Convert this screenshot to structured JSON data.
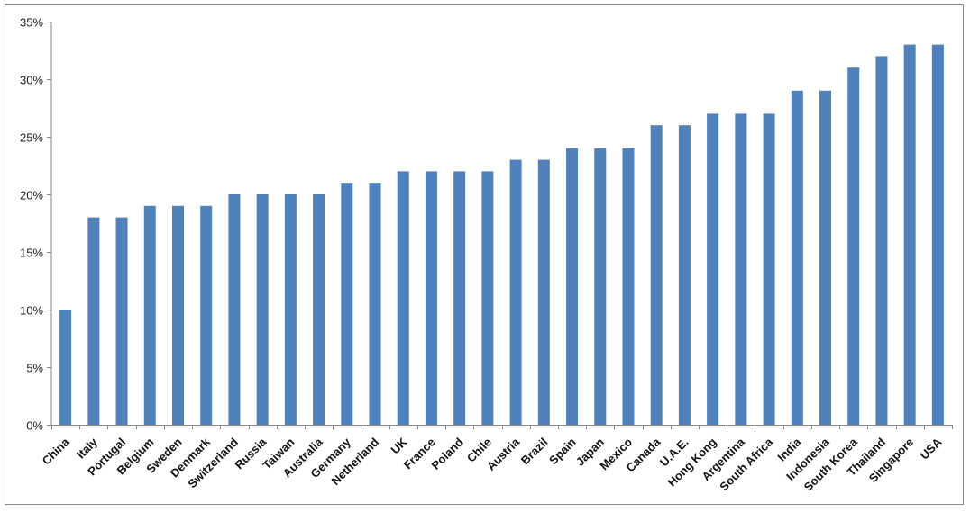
{
  "chart_data": {
    "type": "bar",
    "title": "",
    "xlabel": "",
    "ylabel": "",
    "ylim": [
      0,
      35
    ],
    "y_ticks": [
      0,
      5,
      10,
      15,
      20,
      25,
      30,
      35
    ],
    "y_tick_labels": [
      "0%",
      "5%",
      "10%",
      "15%",
      "20%",
      "25%",
      "30%",
      "35%"
    ],
    "grid": false,
    "legend": "none",
    "bar_color": "#4f81bd",
    "categories": [
      "China",
      "Italy",
      "Portugal",
      "Belgium",
      "Sweden",
      "Denmark",
      "Switzerland",
      "Russia",
      "Taiwan",
      "Australia",
      "Germany",
      "Netherland",
      "UK",
      "France",
      "Poland",
      "Chile",
      "Austria",
      "Brazil",
      "Spain",
      "Japan",
      "Mexico",
      "Canada",
      "U.A.E.",
      "Hong Kong",
      "Argentina",
      "South Africa",
      "India",
      "Indonesia",
      "South Korea",
      "Thailand",
      "Singapore",
      "USA"
    ],
    "values": [
      10,
      18,
      18,
      19,
      19,
      19,
      20,
      20,
      20,
      20,
      21,
      21,
      22,
      22,
      22,
      22,
      23,
      23,
      24,
      24,
      24,
      26,
      26,
      27,
      27,
      27,
      29,
      29,
      31,
      32,
      33,
      33
    ]
  }
}
